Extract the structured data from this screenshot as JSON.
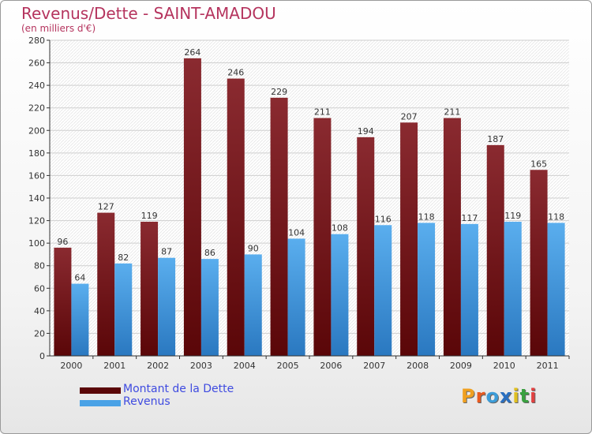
{
  "header": {
    "title": "Revenus/Dette - SAINT-AMADOU",
    "subtitle": "(en milliers d'€)"
  },
  "colors": {
    "dette": "#7a1a1f",
    "revenus": "#4aa2e6",
    "title": "#b5345e",
    "legend_text": "#3f4be0"
  },
  "chart_data": {
    "type": "bar",
    "title": "Revenus/Dette - SAINT-AMADOU",
    "ylabel": "(en milliers d'€)",
    "categories": [
      "2000",
      "2001",
      "2002",
      "2003",
      "2004",
      "2005",
      "2006",
      "2007",
      "2008",
      "2009",
      "2010",
      "2011"
    ],
    "series": [
      {
        "name": "Montant de la Dette",
        "values": [
          96,
          127,
          119,
          264,
          246,
          229,
          211,
          194,
          207,
          211,
          187,
          165
        ]
      },
      {
        "name": "Revenus",
        "values": [
          64,
          82,
          87,
          86,
          90,
          104,
          108,
          116,
          118,
          117,
          119,
          118
        ]
      }
    ],
    "ylim": [
      0,
      280
    ],
    "yticks": [
      0,
      20,
      40,
      60,
      80,
      100,
      120,
      140,
      160,
      180,
      200,
      220,
      240,
      260,
      280
    ],
    "grid": true,
    "legend": "bottom-left"
  },
  "legend": {
    "items": [
      {
        "label": "Montant de la Dette"
      },
      {
        "label": "Revenus"
      }
    ]
  },
  "logo": {
    "letters": [
      "P",
      "r",
      "o",
      "x",
      "i",
      "t",
      "i"
    ],
    "colors": [
      "#f0a020",
      "#e85a20",
      "#3c9cd8",
      "#2a6fc0",
      "#e0c020",
      "#3aa040",
      "#e04040"
    ]
  }
}
